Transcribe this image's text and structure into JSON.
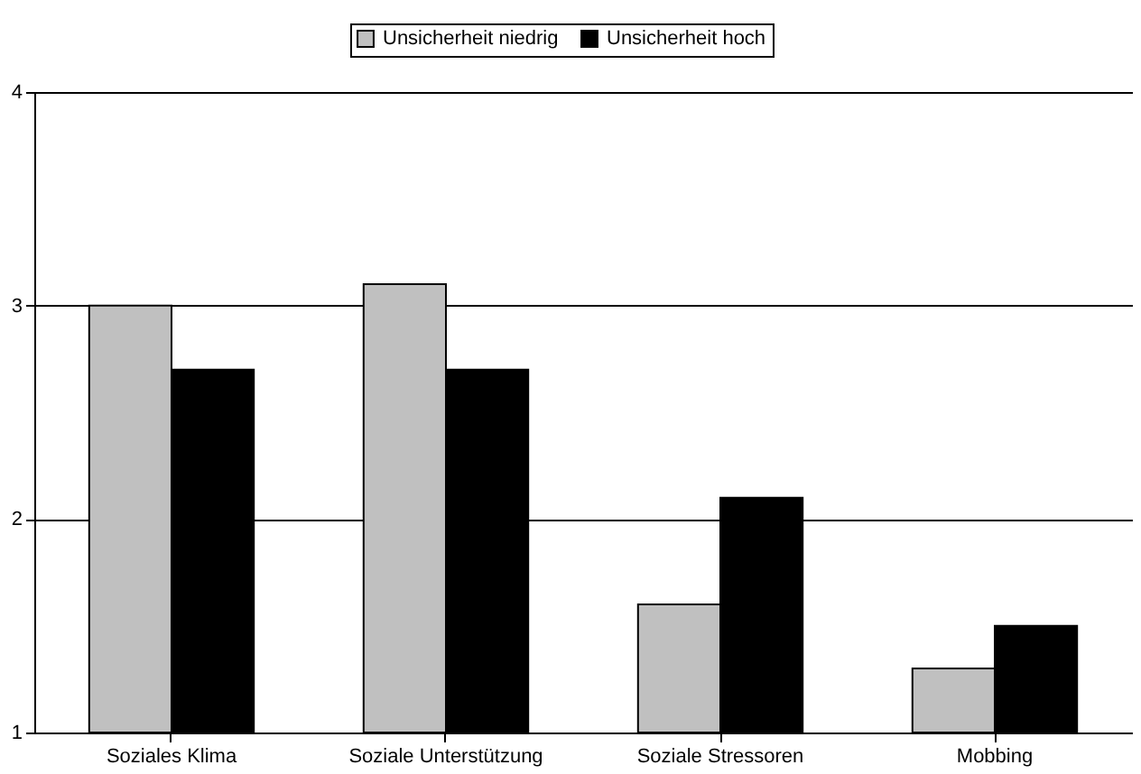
{
  "chart_data": {
    "type": "bar",
    "categories": [
      "Soziales Klima",
      "Soziale Unterstützung",
      "Soziale Stressoren",
      "Mobbing"
    ],
    "series": [
      {
        "name": "Unsicherheit niedrig",
        "color": "#c0c0c0",
        "values": [
          3.0,
          3.1,
          1.6,
          1.3
        ]
      },
      {
        "name": "Unsicherheit hoch",
        "color": "#000000",
        "values": [
          2.7,
          2.7,
          2.1,
          1.5
        ]
      }
    ],
    "ylim": [
      1,
      4
    ],
    "yticks": [
      1,
      2,
      3,
      4
    ],
    "grid": "y",
    "legend": "top"
  }
}
